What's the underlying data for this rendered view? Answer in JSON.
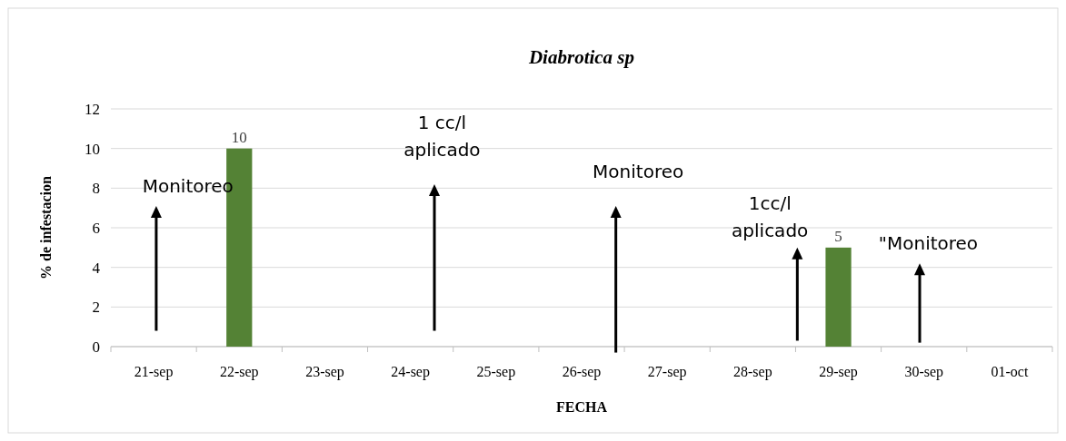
{
  "chart_data": {
    "type": "bar",
    "title": "Diabrotica sp",
    "xlabel": "FECHA",
    "ylabel": "% de infestacion",
    "categories": [
      "21-sep",
      "22-sep",
      "23-sep",
      "24-sep",
      "25-sep",
      "26-sep",
      "27-sep",
      "28-sep",
      "29-sep",
      "30-sep",
      "01-oct"
    ],
    "values": [
      null,
      10,
      null,
      null,
      null,
      null,
      null,
      null,
      5,
      null,
      null
    ],
    "color": "#548235",
    "ylim": [
      0,
      12
    ],
    "yticks": [
      0,
      2,
      4,
      6,
      8,
      10,
      12
    ],
    "grid": "y",
    "data_labels": true,
    "annotations": [
      "Monitoreo",
      "1 cc/l\naplicado",
      "Monitoreo",
      "1cc/l\naplicado",
      "\"Monitoreo"
    ]
  }
}
